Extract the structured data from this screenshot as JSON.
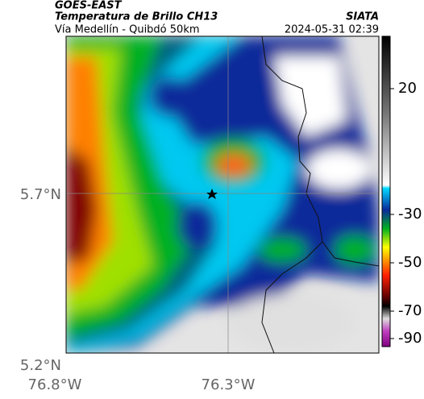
{
  "header": {
    "source": "GOES-EAST",
    "title": "Temperatura de Brillo CH13",
    "subtitle": "Vía Medellín - Quibdó 50km",
    "org": "SIATA",
    "timestamp": "2024-05-31 02:39"
  },
  "axes": {
    "lat_ticks": [
      "5.7°N",
      "5.2°N"
    ],
    "lon_ticks": [
      "76.8°W",
      "76.3°W"
    ]
  },
  "colorbar": {
    "ticks": [
      20,
      -30,
      -50,
      -70,
      -90
    ]
  }
}
